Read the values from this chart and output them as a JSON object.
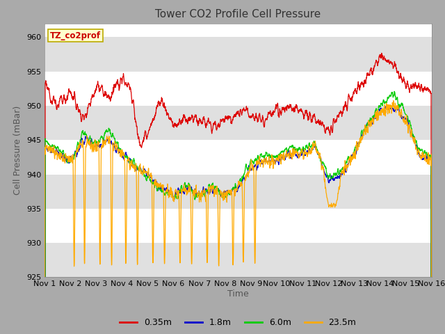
{
  "title": "Tower CO2 Profile Cell Pressure",
  "ylabel": "Cell Pressure (mBar)",
  "xlabel": "Time",
  "annotation": "TZ_co2prof",
  "ylim": [
    925,
    962
  ],
  "yticks": [
    925,
    930,
    935,
    940,
    945,
    950,
    955,
    960
  ],
  "num_days": 15,
  "points_per_day": 144,
  "colors": {
    "0.35m": "#dd0000",
    "1.8m": "#0000cc",
    "6.0m": "#00cc00",
    "23.5m": "#ffaa00"
  },
  "legend_labels": [
    "0.35m",
    "1.8m",
    "6.0m",
    "23.5m"
  ],
  "fig_bg": "#aaaaaa",
  "plot_bg": "#ffffff",
  "band_color": "#e0e0e0",
  "xtick_labels": [
    "Nov 1",
    "Nov 2",
    "Nov 3",
    "Nov 4",
    "Nov 5",
    "Nov 6",
    "Nov 7",
    "Nov 8",
    "Nov 9",
    "Nov 10",
    "Nov 11",
    "Nov 12",
    "Nov 13",
    "Nov 14",
    "Nov 15",
    "Nov 16"
  ],
  "title_fontsize": 11,
  "label_fontsize": 9,
  "tick_fontsize": 8
}
